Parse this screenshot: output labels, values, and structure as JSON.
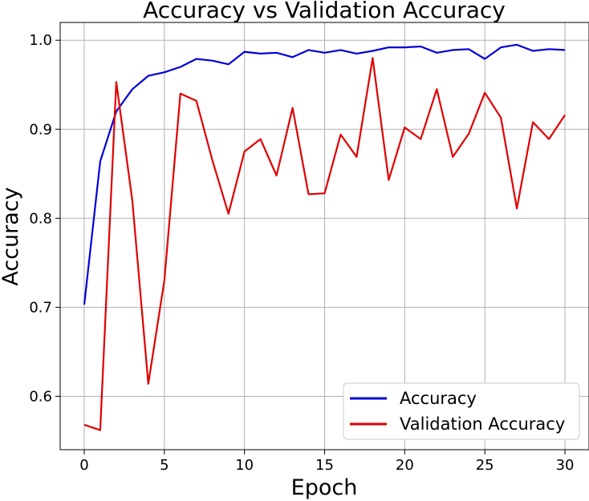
{
  "chart_data": {
    "type": "line",
    "title": "Accuracy vs Validation Accuracy",
    "xlabel": "Epoch",
    "ylabel": "Accuracy",
    "xlim": [
      -1.5,
      31.5
    ],
    "ylim": [
      0.54,
      1.02
    ],
    "xticks": [
      0,
      5,
      10,
      15,
      20,
      25,
      30
    ],
    "yticks": [
      0.6,
      0.7,
      0.8,
      0.9,
      1.0
    ],
    "ytick_labels": [
      "0.6",
      "0.7",
      "0.8",
      "0.9",
      "1.0"
    ],
    "grid": true,
    "legend_position": "lower-right",
    "x": [
      0,
      1,
      2,
      3,
      4,
      5,
      6,
      7,
      8,
      9,
      10,
      11,
      12,
      13,
      14,
      15,
      16,
      17,
      18,
      19,
      20,
      21,
      22,
      23,
      24,
      25,
      26,
      27,
      28,
      29,
      30
    ],
    "series": [
      {
        "name": "Accuracy",
        "color": "#0000d8",
        "values": [
          0.703,
          0.864,
          0.92,
          0.945,
          0.96,
          0.964,
          0.97,
          0.979,
          0.977,
          0.973,
          0.987,
          0.985,
          0.986,
          0.981,
          0.989,
          0.986,
          0.989,
          0.985,
          0.988,
          0.992,
          0.992,
          0.993,
          0.986,
          0.989,
          0.99,
          0.979,
          0.992,
          0.995,
          0.988,
          0.99,
          0.989
        ]
      },
      {
        "name": "Validation Accuracy",
        "color": "#e00000",
        "values": [
          0.568,
          0.562,
          0.953,
          0.82,
          0.614,
          0.73,
          0.94,
          0.932,
          0.865,
          0.805,
          0.875,
          0.889,
          0.848,
          0.924,
          0.827,
          0.828,
          0.894,
          0.869,
          0.98,
          0.843,
          0.902,
          0.889,
          0.945,
          0.869,
          0.895,
          0.941,
          0.913,
          0.811,
          0.908,
          0.889,
          0.916
        ]
      }
    ]
  }
}
